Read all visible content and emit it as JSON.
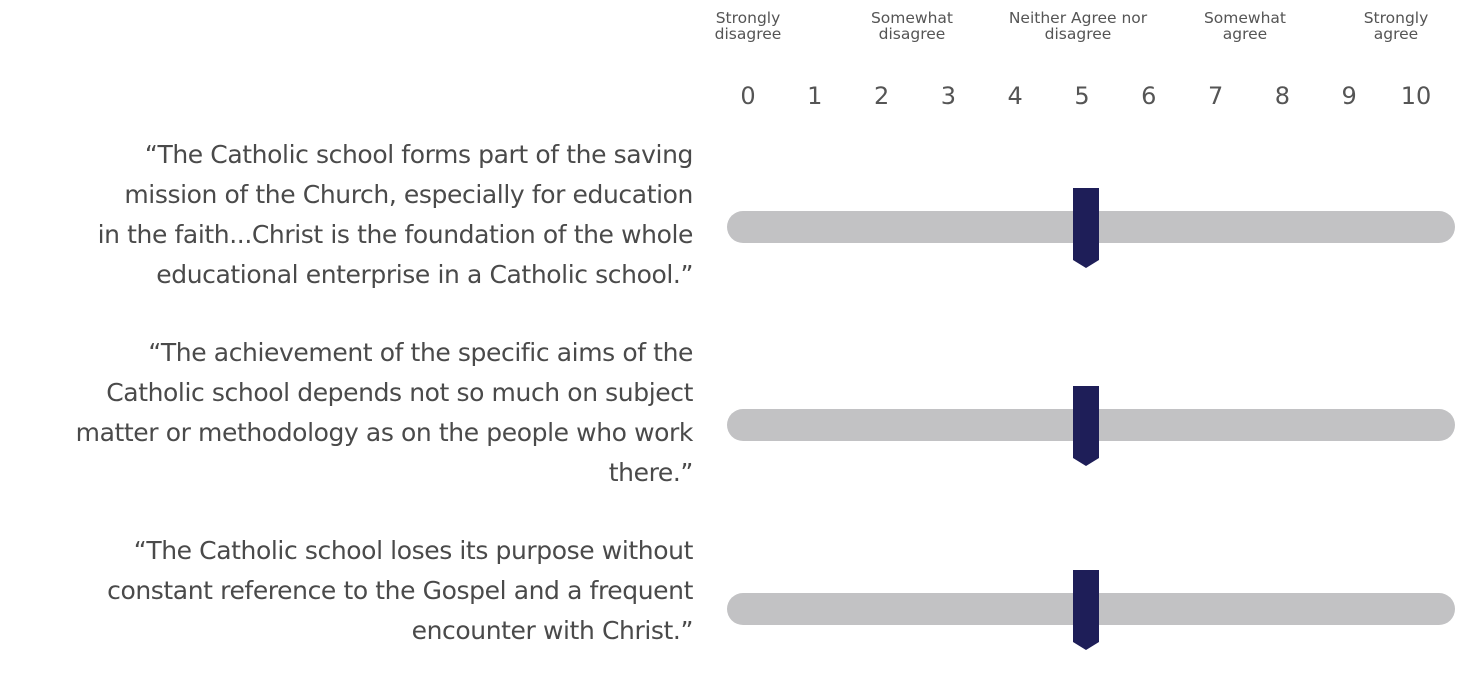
{
  "scale": {
    "labels": [
      "Strongly disagree",
      "Somewhat disagree",
      "Neither Agree nor disagree",
      "Somewhat agree",
      "Strongly agree"
    ],
    "points": [
      0,
      1,
      2,
      3,
      4,
      5,
      6,
      7,
      8,
      9,
      10
    ]
  },
  "items": [
    {
      "lines": [
        "“The Catholic school forms part of the saving",
        "mission of the Church, especially for education",
        "in the faith...Christ is the foundation of the whole",
        "educational enterprise in a Catholic school.”"
      ],
      "value": 5
    },
    {
      "lines": [
        "“The achievement of the specific aims of the",
        "Catholic school depends not so much on subject",
        "matter or methodology as on the people who work",
        "there.”"
      ],
      "value": 5
    },
    {
      "lines": [
        "“The Catholic school loses its purpose without",
        "constant reference to the Gospel and a frequent",
        "encounter with Christ.”"
      ],
      "value": 5
    }
  ]
}
